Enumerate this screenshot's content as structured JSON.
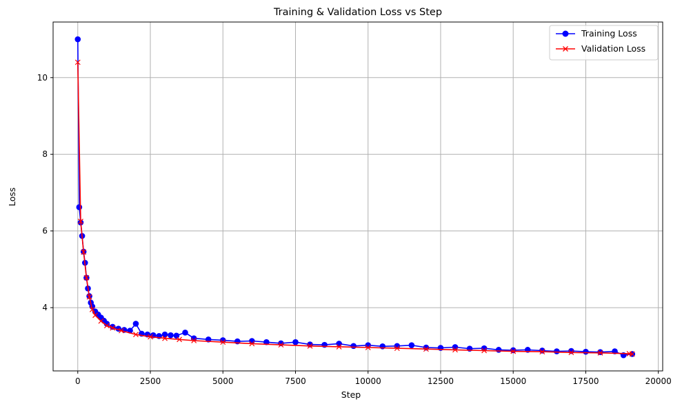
{
  "chart_data": {
    "type": "line",
    "title": "Training & Validation Loss vs Step",
    "xlabel": "Step",
    "ylabel": "Loss",
    "xlim": [
      -850,
      20150
    ],
    "ylim": [
      2.35,
      11.45
    ],
    "xticks": [
      0,
      2500,
      5000,
      7500,
      10000,
      12500,
      15000,
      17500,
      20000
    ],
    "yticks": [
      4,
      6,
      8,
      10
    ],
    "grid": true,
    "legend_position": "top-right",
    "series": [
      {
        "name": "Training Loss",
        "color": "#0000ff",
        "marker": "circle",
        "x": [
          0,
          50,
          100,
          150,
          200,
          250,
          300,
          350,
          400,
          450,
          500,
          600,
          700,
          800,
          900,
          1000,
          1200,
          1400,
          1600,
          1800,
          2000,
          2200,
          2400,
          2600,
          2800,
          3000,
          3200,
          3400,
          3700,
          4000,
          4500,
          5000,
          5500,
          6000,
          6500,
          7000,
          7500,
          8000,
          8500,
          9000,
          9500,
          10000,
          10500,
          11000,
          11500,
          12000,
          12500,
          13000,
          13500,
          14000,
          14500,
          15000,
          15500,
          16000,
          16500,
          17000,
          17500,
          18000,
          18500,
          18800,
          19100
        ],
        "y": [
          11.0,
          6.62,
          6.22,
          5.87,
          5.46,
          5.17,
          4.78,
          4.5,
          4.3,
          4.13,
          4.03,
          3.9,
          3.82,
          3.74,
          3.66,
          3.58,
          3.5,
          3.45,
          3.42,
          3.4,
          3.58,
          3.32,
          3.3,
          3.28,
          3.26,
          3.3,
          3.28,
          3.27,
          3.35,
          3.2,
          3.17,
          3.15,
          3.12,
          3.13,
          3.1,
          3.07,
          3.1,
          3.04,
          3.03,
          3.06,
          3.0,
          3.02,
          2.99,
          3.0,
          3.02,
          2.96,
          2.95,
          2.97,
          2.93,
          2.94,
          2.9,
          2.89,
          2.9,
          2.88,
          2.86,
          2.87,
          2.85,
          2.84,
          2.86,
          2.76,
          2.79
        ]
      },
      {
        "name": "Validation Loss",
        "color": "#ff0000",
        "marker": "x",
        "x": [
          0,
          100,
          200,
          300,
          400,
          500,
          600,
          800,
          1000,
          1200,
          1500,
          2000,
          2500,
          3000,
          3500,
          4000,
          5000,
          6000,
          7000,
          8000,
          9000,
          10000,
          11000,
          12000,
          13000,
          14000,
          15000,
          16000,
          17000,
          18000,
          19000,
          19100
        ],
        "y": [
          10.4,
          6.25,
          5.45,
          4.78,
          4.28,
          3.95,
          3.8,
          3.65,
          3.53,
          3.47,
          3.4,
          3.3,
          3.24,
          3.2,
          3.17,
          3.14,
          3.1,
          3.06,
          3.03,
          3.0,
          2.98,
          2.96,
          2.94,
          2.92,
          2.9,
          2.88,
          2.86,
          2.85,
          2.83,
          2.82,
          2.8,
          2.79
        ]
      }
    ]
  }
}
